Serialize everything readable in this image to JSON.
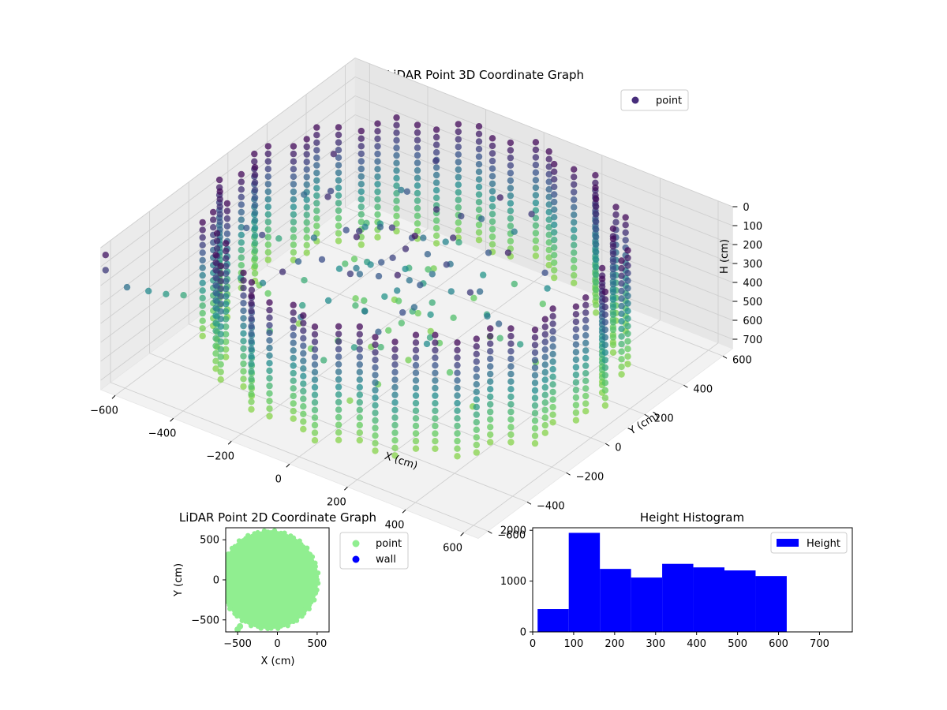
{
  "colors": {
    "point_3d": "#472d7b",
    "point_2d": "#90ee90",
    "wall": "#0000ff",
    "height_bar": "#0000ff",
    "colormap": [
      "#440154",
      "#3b528b",
      "#21908d",
      "#5dc962",
      "#a8db34"
    ]
  },
  "chart_data": [
    {
      "type": "scatter",
      "projection": "3d",
      "title": "LiDAR Point 3D Coordinate Graph",
      "xlabel": "X (cm)",
      "ylabel": "Y (cm)",
      "zlabel": "H (cm)",
      "x_ticks": [
        "−600",
        "−400",
        "−200",
        "0",
        "200",
        "400",
        "600"
      ],
      "y_ticks": [
        "−600",
        "−400",
        "−200",
        "0",
        "200",
        "400",
        "600"
      ],
      "z_ticks": [
        "0",
        "100",
        "200",
        "300",
        "400",
        "500",
        "600",
        "700"
      ],
      "xlim": [
        -650,
        650
      ],
      "ylim": [
        -650,
        650
      ],
      "zlim": [
        750,
        0
      ],
      "z_inverted": true,
      "grid": true,
      "legend": {
        "position": "upper-right",
        "entries": [
          "point"
        ]
      },
      "series": [
        {
          "name": "point",
          "description_shape": "cylindrical wall of vertical point columns, radius ~600 cm, heights ~0-650 cm, plus sparse interior points",
          "radius": 600,
          "h_range": [
            0,
            650
          ]
        }
      ]
    },
    {
      "type": "scatter",
      "title": "LiDAR Point 2D Coordinate Graph",
      "xlabel": "X (cm)",
      "ylabel": "Y (cm)",
      "x_ticks": [
        "−500",
        "0",
        "500"
      ],
      "y_ticks": [
        "500",
        "0",
        "−500"
      ],
      "xlim": [
        -650,
        650
      ],
      "ylim": [
        -650,
        650
      ],
      "grid": false,
      "legend": {
        "position": "outside-right",
        "entries": [
          "point",
          "wall"
        ]
      },
      "series": [
        {
          "name": "point",
          "center": [
            -100,
            0
          ],
          "radius": 600
        },
        {
          "name": "wall",
          "values": []
        }
      ]
    },
    {
      "type": "bar",
      "subtype": "histogram",
      "title": "Height Histogram",
      "xlabel": "",
      "ylabel": "",
      "x_ticks": [
        "0",
        "100",
        "200",
        "300",
        "400",
        "500",
        "600",
        "700"
      ],
      "y_ticks": [
        "0",
        "1000",
        "2000"
      ],
      "xlim": [
        0,
        780
      ],
      "ylim": [
        0,
        2050
      ],
      "legend": {
        "position": "upper-right",
        "entries": [
          "Height"
        ]
      },
      "series": [
        {
          "name": "Height",
          "bin_edges": [
            12,
            88,
            164,
            240,
            316,
            392,
            468,
            544,
            620
          ],
          "values": [
            450,
            1950,
            1240,
            1070,
            1340,
            1270,
            1210,
            1100
          ]
        }
      ]
    }
  ]
}
